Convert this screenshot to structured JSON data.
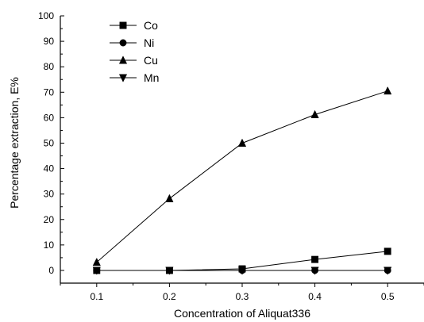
{
  "chart_data": {
    "type": "line",
    "xlabel": "Concentration of Aliquat336",
    "ylabel": "Percentage extraction, E%",
    "x": [
      0.1,
      0.2,
      0.3,
      0.4,
      0.5
    ],
    "x_tick_labels": [
      "0.1",
      "0.2",
      "0.3",
      "0.4",
      "0.5"
    ],
    "xlim": [
      0.05,
      0.55
    ],
    "ylim": [
      -5,
      100
    ],
    "y_ticks": [
      0,
      10,
      20,
      30,
      40,
      50,
      60,
      70,
      80,
      90,
      100
    ],
    "y_tick_labels": [
      "0",
      "10",
      "20",
      "30",
      "40",
      "50",
      "60",
      "70",
      "80",
      "90",
      "100"
    ],
    "grid": false,
    "legend_position": "top-left",
    "series": [
      {
        "name": "Co",
        "marker": "square",
        "values": [
          0,
          0,
          0.6,
          4.3,
          7.5
        ]
      },
      {
        "name": "Ni",
        "marker": "circle",
        "values": [
          0,
          0,
          0,
          0,
          0
        ]
      },
      {
        "name": "Cu",
        "marker": "triangle-up",
        "values": [
          3.2,
          28.2,
          50.0,
          61.2,
          70.5
        ]
      },
      {
        "name": "Mn",
        "marker": "triangle-down",
        "values": [
          0,
          0,
          0,
          0,
          0
        ]
      }
    ],
    "colors": {
      "line": "#000000",
      "marker": "#000000",
      "axis": "#000000"
    }
  }
}
